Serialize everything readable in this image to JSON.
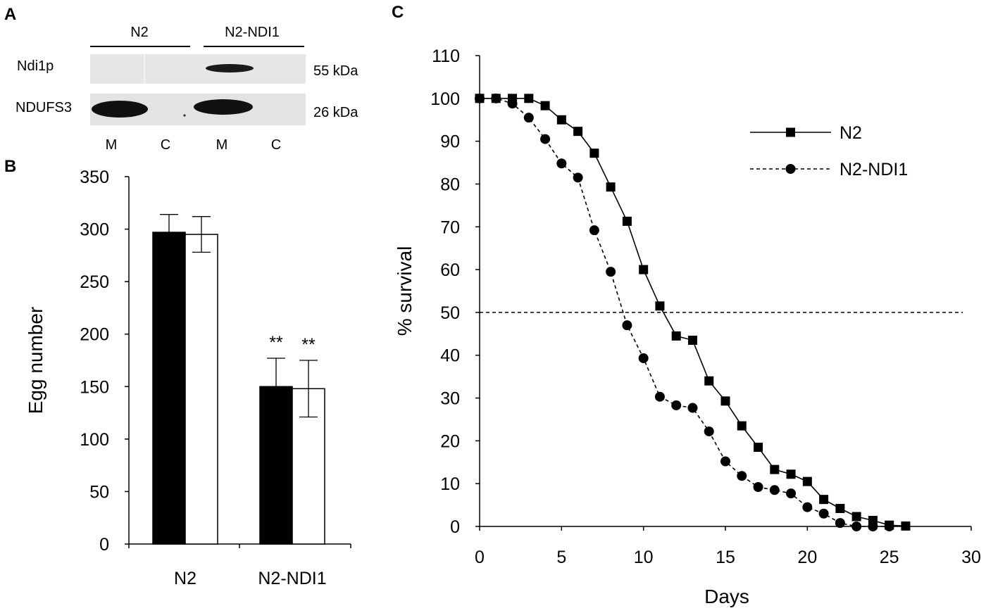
{
  "panels": {
    "a": {
      "letter": "A",
      "groups": [
        "N2",
        "N2-NDI1"
      ],
      "rows": [
        {
          "label": "Ndi1p",
          "size": "55 kDa"
        },
        {
          "label": "NDUFS3",
          "size": "26 kDa"
        }
      ],
      "lanes": [
        "M",
        "C",
        "M",
        "C"
      ]
    },
    "b": {
      "letter": "B"
    },
    "c": {
      "letter": "C"
    }
  },
  "chart_data": [
    {
      "type": "bar",
      "title": "",
      "xlabel": "",
      "ylabel": "Egg number",
      "ylim": [
        0,
        350
      ],
      "yticks": [
        0,
        50,
        100,
        150,
        200,
        250,
        300,
        350
      ],
      "categories": [
        "N2",
        "N2-NDI1"
      ],
      "series": [
        {
          "name": "black",
          "color": "#000000",
          "values": [
            297,
            150
          ],
          "errors": [
            17,
            27
          ]
        },
        {
          "name": "white",
          "color": "#ffffff",
          "values": [
            295,
            148
          ],
          "errors": [
            17,
            27
          ]
        }
      ],
      "annotations": [
        "**",
        "**"
      ]
    },
    {
      "type": "line",
      "title": "",
      "xlabel": "Days",
      "ylabel": "% survival",
      "xlim": [
        0,
        30
      ],
      "ylim": [
        0,
        110
      ],
      "xticks": [
        0,
        5,
        10,
        15,
        20,
        25,
        30
      ],
      "yticks": [
        0,
        10,
        20,
        30,
        40,
        50,
        60,
        70,
        80,
        90,
        100,
        110
      ],
      "reference_line": {
        "y": 50,
        "style": "dashed"
      },
      "legend_position": "top-right",
      "series": [
        {
          "name": "N2",
          "marker": "square",
          "line": "solid",
          "x": [
            0,
            1,
            2,
            3,
            4,
            5,
            6,
            7,
            8,
            9,
            10,
            11,
            12,
            13,
            14,
            15,
            16,
            17,
            18,
            19,
            20,
            21,
            22,
            23,
            24,
            25,
            26
          ],
          "y": [
            100,
            100,
            100,
            100,
            98.3,
            95,
            92.3,
            87.2,
            79.3,
            71.3,
            60,
            51.5,
            44.5,
            43.5,
            34,
            29.3,
            23.5,
            18.5,
            13.3,
            12.2,
            10.5,
            6.3,
            4.2,
            2.3,
            1.4,
            0.3,
            0.1
          ]
        },
        {
          "name": "N2-NDI1",
          "marker": "circle",
          "line": "dashed",
          "x": [
            0,
            1,
            2,
            3,
            4,
            5,
            6,
            7,
            8,
            9,
            10,
            11,
            12,
            13,
            14,
            15,
            16,
            17,
            18,
            19,
            20,
            21,
            22,
            23,
            24,
            25
          ],
          "y": [
            100,
            100,
            98.8,
            95.5,
            90.5,
            84.8,
            81.5,
            69.2,
            59.5,
            47,
            39.3,
            30.3,
            28.3,
            27.7,
            22.2,
            15.2,
            11.8,
            9.2,
            8.5,
            7.7,
            4.5,
            3,
            0.8,
            0,
            0,
            0
          ]
        }
      ]
    }
  ]
}
